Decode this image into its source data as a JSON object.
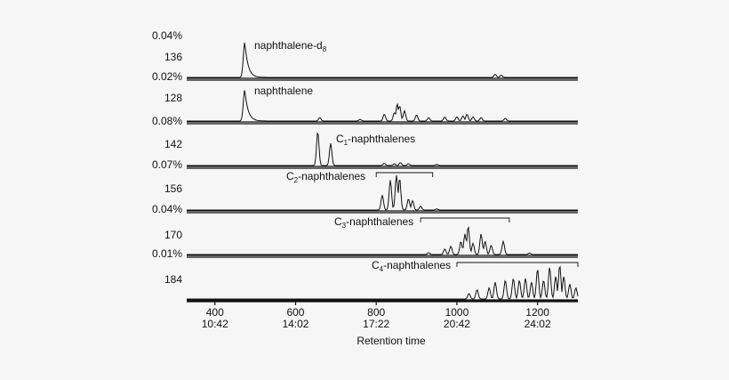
{
  "chart_data": {
    "type": "line",
    "title": "",
    "xlabel": "Retention time",
    "ylabel": "",
    "xlim": [
      330,
      1300
    ],
    "grid": false,
    "legend": "none",
    "x_ticks": [
      {
        "value": 400,
        "label": "400",
        "time": "10:42"
      },
      {
        "value": 600,
        "label": "600",
        "time": "14:02"
      },
      {
        "value": 800,
        "label": "800",
        "time": "17:22"
      },
      {
        "value": 1000,
        "label": "1000",
        "time": "20:42"
      },
      {
        "value": 1200,
        "label": "1200",
        "time": "24:02"
      }
    ],
    "panels": [
      {
        "mz": "136",
        "scale": "0.04%",
        "series_label": "naphthalene-d",
        "series_sub": "8",
        "peaks": [
          [
            474,
            0.95
          ],
          [
            1095,
            0.08
          ],
          [
            1110,
            0.06
          ]
        ]
      },
      {
        "mz": "128",
        "scale": "0.02%",
        "series_label": "naphthalene",
        "series_sub": "",
        "peaks": [
          [
            474,
            0.93
          ],
          [
            660,
            0.1
          ],
          [
            760,
            0.05
          ],
          [
            820,
            0.2
          ],
          [
            845,
            0.25
          ],
          [
            852,
            0.5
          ],
          [
            858,
            0.45
          ],
          [
            870,
            0.3
          ],
          [
            900,
            0.18
          ],
          [
            930,
            0.1
          ],
          [
            970,
            0.12
          ],
          [
            1000,
            0.12
          ],
          [
            1015,
            0.15
          ],
          [
            1025,
            0.2
          ],
          [
            1040,
            0.12
          ],
          [
            1060,
            0.1
          ],
          [
            1120,
            0.08
          ]
        ]
      },
      {
        "mz": "142",
        "scale": "0.08%",
        "series_label": "C",
        "series_sub": "1",
        "series_suffix": "-naphthalenes",
        "peaks": [
          [
            655,
            0.95
          ],
          [
            687,
            0.62
          ],
          [
            820,
            0.06
          ],
          [
            845,
            0.05
          ],
          [
            860,
            0.08
          ],
          [
            880,
            0.05
          ],
          [
            950,
            0.03
          ]
        ]
      },
      {
        "mz": "156",
        "scale": "0.07%",
        "series_label": "C",
        "series_sub": "2",
        "series_suffix": "-naphthalenes",
        "bracket": [
          800,
          940
        ],
        "peaks": [
          [
            815,
            0.4
          ],
          [
            835,
            0.8
          ],
          [
            850,
            0.93
          ],
          [
            858,
            0.85
          ],
          [
            880,
            0.3
          ],
          [
            890,
            0.25
          ],
          [
            910,
            0.1
          ],
          [
            950,
            0.03
          ]
        ]
      },
      {
        "mz": "170",
        "scale": "0.04%",
        "series_label": "C",
        "series_sub": "3",
        "series_suffix": "-naphthalenes",
        "bracket": [
          910,
          1130
        ],
        "peaks": [
          [
            930,
            0.05
          ],
          [
            970,
            0.15
          ],
          [
            985,
            0.22
          ],
          [
            1010,
            0.35
          ],
          [
            1020,
            0.55
          ],
          [
            1028,
            0.75
          ],
          [
            1040,
            0.3
          ],
          [
            1060,
            0.55
          ],
          [
            1070,
            0.35
          ],
          [
            1085,
            0.25
          ],
          [
            1115,
            0.35
          ],
          [
            1180,
            0.04
          ]
        ]
      },
      {
        "mz": "184",
        "scale": "0.01%",
        "series_label": "C",
        "series_sub": "4",
        "series_suffix": "-naphthalenes",
        "bracket": [
          1000,
          1300
        ],
        "peaks": [
          [
            1030,
            0.15
          ],
          [
            1050,
            0.25
          ],
          [
            1080,
            0.3
          ],
          [
            1095,
            0.45
          ],
          [
            1120,
            0.5
          ],
          [
            1140,
            0.55
          ],
          [
            1155,
            0.5
          ],
          [
            1170,
            0.55
          ],
          [
            1185,
            0.45
          ],
          [
            1200,
            0.8
          ],
          [
            1215,
            0.5
          ],
          [
            1230,
            0.85
          ],
          [
            1245,
            0.6
          ],
          [
            1255,
            0.9
          ],
          [
            1265,
            0.6
          ],
          [
            1280,
            0.4
          ],
          [
            1295,
            0.3
          ]
        ]
      }
    ]
  }
}
